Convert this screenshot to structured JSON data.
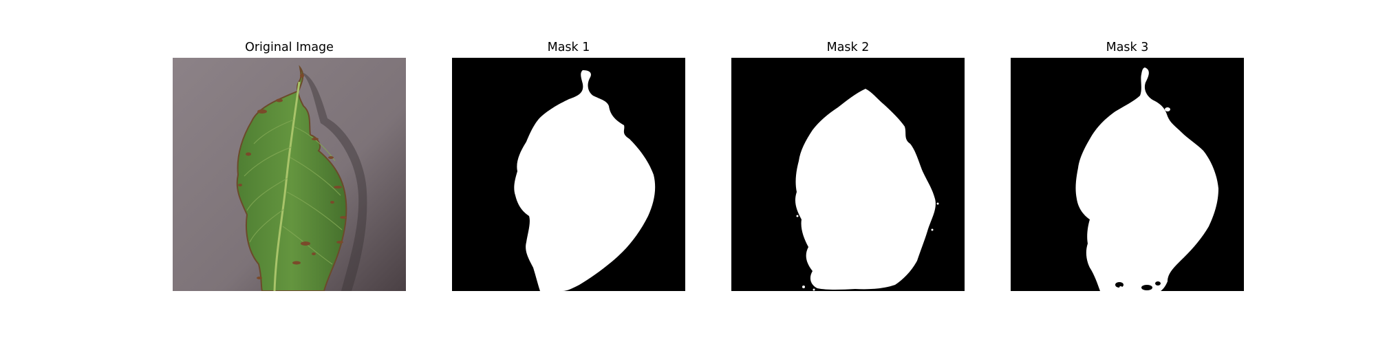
{
  "figure": {
    "panels": [
      {
        "title": "Original Image",
        "content": "leaf-photo"
      },
      {
        "title": "Mask 1",
        "content": "segmentation-mask"
      },
      {
        "title": "Mask 2",
        "content": "segmentation-mask"
      },
      {
        "title": "Mask 3",
        "content": "segmentation-mask"
      }
    ]
  },
  "colors": {
    "background": "#857a80",
    "leaf": "#5b8a3c",
    "leaf_dark": "#3f6b2a",
    "midrib": "#a9c46a",
    "lesion": "#7a4a2a",
    "mask_fg": "#ffffff",
    "mask_bg": "#000000"
  }
}
